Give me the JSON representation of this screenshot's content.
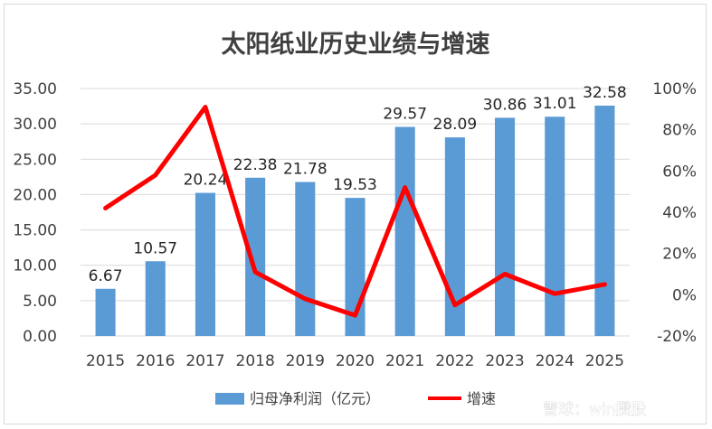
{
  "chart_data": {
    "type": "bar+line",
    "title": "太阳纸业历史业绩与增速",
    "categories": [
      "2015",
      "2016",
      "2017",
      "2018",
      "2019",
      "2020",
      "2021",
      "2022",
      "2023",
      "2024",
      "2025"
    ],
    "series": [
      {
        "name": "归母净利润（亿元）",
        "type": "bar",
        "axis": "left",
        "values": [
          6.67,
          10.57,
          20.24,
          22.38,
          21.78,
          19.53,
          29.57,
          28.09,
          30.86,
          31.01,
          32.58
        ],
        "labels": [
          "6.67",
          "10.57",
          "20.24",
          "22.38",
          "21.78",
          "19.53",
          "29.57",
          "28.09",
          "30.86",
          "31.01",
          "32.58"
        ],
        "color": "#5b9bd5"
      },
      {
        "name": "增速",
        "type": "line",
        "axis": "right",
        "values": [
          42,
          58,
          91,
          11,
          -2,
          -10,
          52,
          -5,
          10,
          0.5,
          5
        ],
        "color": "#ff0000"
      }
    ],
    "left_axis": {
      "min": 0,
      "max": 35,
      "step": 5,
      "tick_labels": [
        "0.00",
        "5.00",
        "10.00",
        "15.00",
        "20.00",
        "25.00",
        "30.00",
        "35.00"
      ]
    },
    "right_axis": {
      "min": -20,
      "max": 100,
      "step": 20,
      "tick_labels": [
        "-20%",
        "0%",
        "20%",
        "40%",
        "60%",
        "80%",
        "100%"
      ]
    },
    "grid": true,
    "legend_position": "bottom"
  },
  "watermark": {
    "text": "雪球：win攒股"
  }
}
